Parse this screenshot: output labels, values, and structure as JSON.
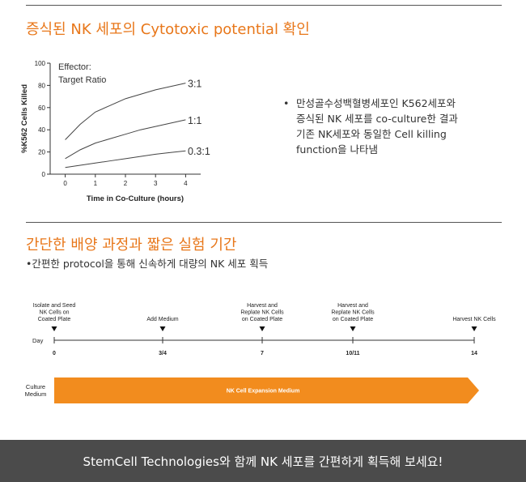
{
  "section1": {
    "title": "증식된 NK 세포의 Cytotoxic potential 확인",
    "bullet": "•",
    "desc_lines": [
      "만성골수성백혈병세포인 K562세포와",
      "증식된 NK 세포를 co-culture한 결과",
      "기존 NK세포와 동일한 Cell killing",
      "function을 나타냄"
    ]
  },
  "chart_data": {
    "type": "line",
    "title": "",
    "xlabel": "Time in Co-Culture (hours)",
    "ylabel": "%K562 Cells Killed",
    "legend_title_lines": [
      "Effector:",
      "Target Ratio"
    ],
    "x": [
      0,
      0.5,
      1,
      1.5,
      2,
      2.5,
      3,
      3.5,
      4
    ],
    "xticks": [
      0,
      1,
      2,
      3,
      4
    ],
    "xlim": [
      -0.5,
      4.5
    ],
    "ylim": [
      0,
      100
    ],
    "yticks": [
      0,
      20,
      40,
      60,
      80,
      100
    ],
    "series": [
      {
        "name": "3:1",
        "values": [
          31,
          45,
          56,
          62,
          68,
          72,
          76,
          79,
          82
        ]
      },
      {
        "name": "1:1",
        "values": [
          14,
          22,
          28,
          32,
          36,
          40,
          43,
          46,
          49
        ]
      },
      {
        "name": "0.3:1",
        "values": [
          6,
          8,
          10,
          12,
          14,
          16,
          18,
          19.5,
          21
        ]
      }
    ]
  },
  "section2": {
    "title": "간단한 배양 과정과 짧은 실험 기간",
    "subtitle": "•간편한 protocol을 통해 신속하게 대량의 NK 세포 획득"
  },
  "timeline": {
    "day_label": "Day",
    "events": [
      {
        "label_lines": [
          "Isolate and Seed",
          "NK Cells on",
          "Coated Plate"
        ],
        "day": "0"
      },
      {
        "label_lines": [
          "Add Medium"
        ],
        "day": "3/4"
      },
      {
        "label_lines": [
          "Harvest and",
          "Replate NK Cells",
          "on Coated Plate"
        ],
        "day": "7"
      },
      {
        "label_lines": [
          "Harvest and",
          "Replate NK Cells",
          "on Coated Plate"
        ],
        "day": "10/11"
      },
      {
        "label_lines": [
          "Harvest NK Cells"
        ],
        "day": "14"
      }
    ],
    "medium_label_lines": [
      "Culture",
      "Medium"
    ],
    "medium_bar_label": "NK Cell Expansion Medium",
    "medium_bar_color": "#f28c1e"
  },
  "footer": {
    "text": "StemCell Technologies와 함께 NK 세포를 간편하게 획득해 보세요!"
  },
  "colors": {
    "accent": "#e8771a",
    "footer_bg": "#4b4b4b"
  }
}
